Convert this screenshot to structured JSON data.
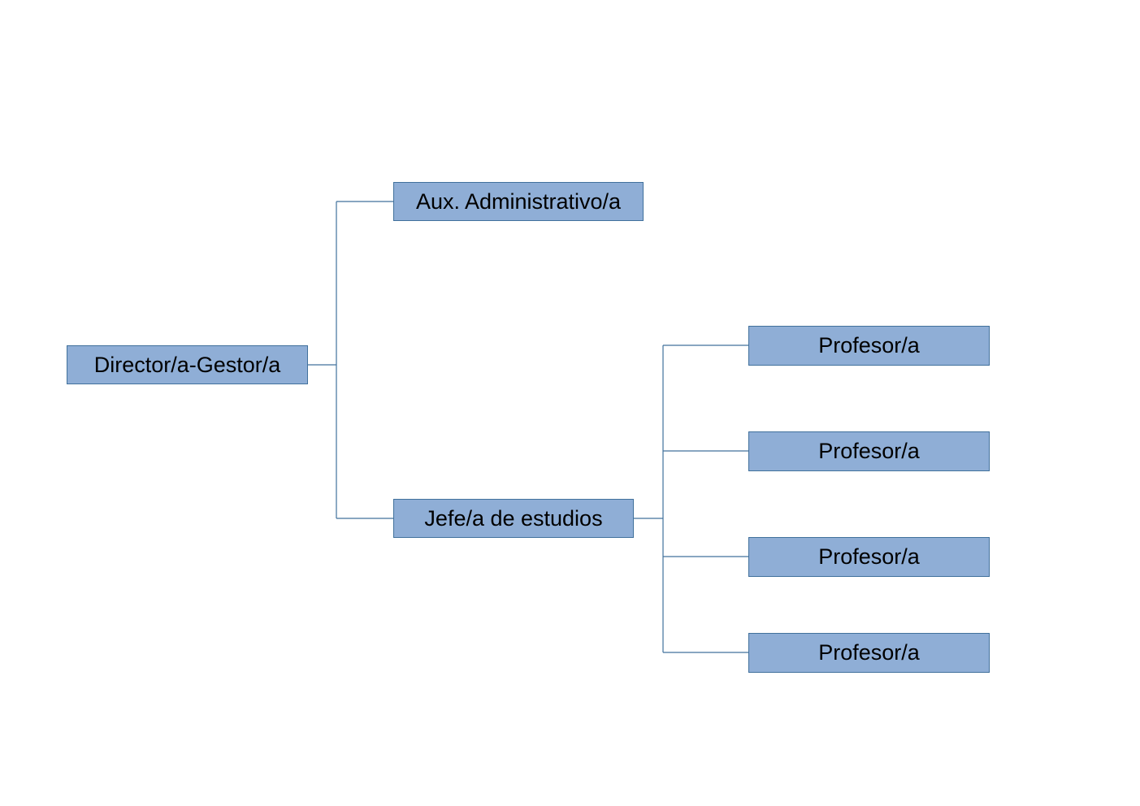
{
  "org_chart": {
    "root": {
      "label": "Director/a-Gestor/a"
    },
    "level2": [
      {
        "label": "Aux. Administrativo/a"
      },
      {
        "label": "Jefe/a de estudios"
      }
    ],
    "level3": [
      {
        "label": "Profesor/a"
      },
      {
        "label": "Profesor/a"
      },
      {
        "label": "Profesor/a"
      },
      {
        "label": "Profesor/a"
      }
    ]
  },
  "colors": {
    "node_fill": "#8faed6",
    "node_border": "#41719c",
    "connector": "#41719c",
    "text": "#000000",
    "background": "#ffffff"
  }
}
